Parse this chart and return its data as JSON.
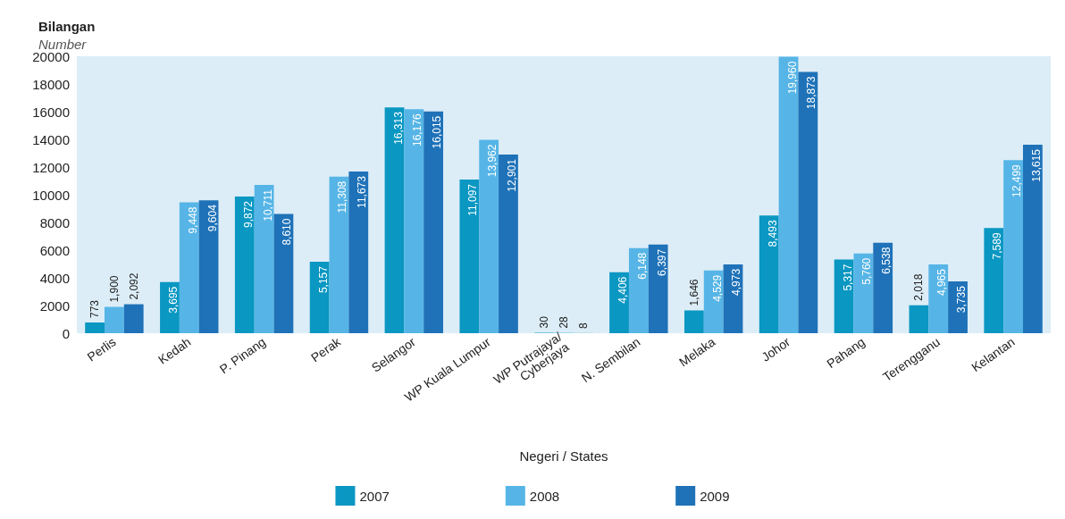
{
  "chart_data": {
    "type": "bar",
    "ylabel": "Bilangan\nNumber",
    "xlabel": "Negeri / States",
    "categories": [
      "Perlis",
      "Kedah",
      "P. Pinang",
      "Perak",
      "Selangor",
      "WP Kuala Lumpur",
      "WP Putrajaya/Cyberjaya",
      "N. Sembilan",
      "Melaka",
      "Johor",
      "Pahang",
      "Terengganu",
      "Kelantan"
    ],
    "series": [
      {
        "name": "2007",
        "color": "#0a97c2",
        "values": [
          773,
          3695,
          9872,
          5157,
          16313,
          11097,
          30,
          4406,
          1646,
          8493,
          5317,
          2018,
          7589
        ],
        "value_labels": [
          "773",
          "3,695",
          "9,872",
          "5,157",
          "16,313",
          "11,097",
          "30",
          "4,406",
          "1,646",
          "8,493",
          "5,317",
          "2,018",
          "7,589"
        ]
      },
      {
        "name": "2008",
        "color": "#56b5e6",
        "values": [
          1900,
          9448,
          10711,
          11308,
          16176,
          13962,
          28,
          6148,
          4529,
          19960,
          5760,
          4965,
          12499
        ],
        "value_labels": [
          "1,900",
          "9,448",
          "10,711",
          "11,308",
          "16,176",
          "13,962",
          "28",
          "6,148",
          "4,529",
          "19,960",
          "5,760",
          "4,965",
          "12,499"
        ]
      },
      {
        "name": "2009",
        "color": "#1f72b8",
        "values": [
          2092,
          9604,
          8610,
          11673,
          16015,
          12901,
          8,
          6397,
          4973,
          18873,
          6538,
          3735,
          13615
        ],
        "value_labels": [
          "2,092",
          "9,604",
          "8,610",
          "11,673",
          "16,015",
          "12,901",
          "8",
          "6,397",
          "4,973",
          "18,873",
          "6,538",
          "3,735",
          "13,615"
        ]
      }
    ],
    "ylim": [
      0,
      20000
    ],
    "yticks": [
      0,
      2000,
      4000,
      6000,
      8000,
      10000,
      12000,
      14000,
      16000,
      18000,
      20000
    ],
    "grid": false,
    "legend": "bottom"
  }
}
